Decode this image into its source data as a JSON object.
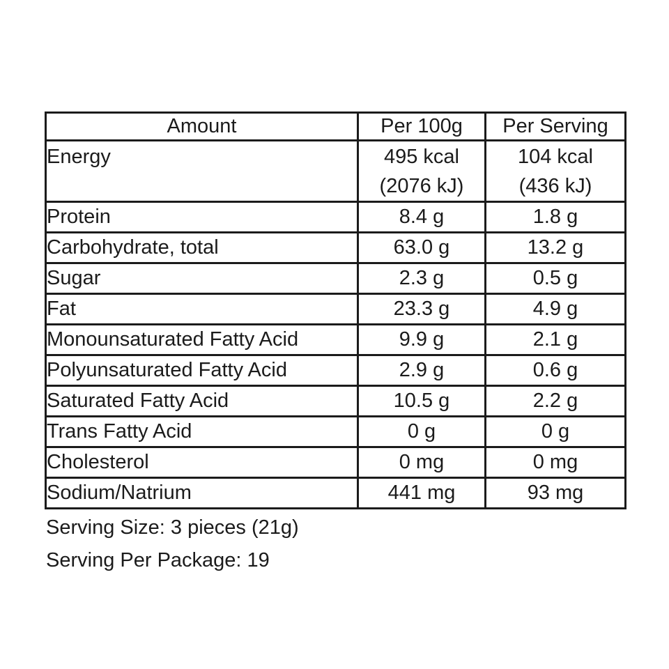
{
  "colors": {
    "background": "#ffffff",
    "text": "#1b1b1b",
    "border": "#1b1b1b"
  },
  "table": {
    "headers": {
      "amount": "Amount",
      "per_100g": "Per 100g",
      "per_serving": "Per Serving"
    },
    "rows": [
      {
        "label": "Energy",
        "per_100g": "495 kcal\n(2076 kJ)",
        "per_serving": "104 kcal\n(436 kJ)"
      },
      {
        "label": "Protein",
        "per_100g": "8.4 g",
        "per_serving": "1.8 g"
      },
      {
        "label": "Carbohydrate, total",
        "per_100g": "63.0 g",
        "per_serving": "13.2 g"
      },
      {
        "label": "Sugar",
        "per_100g": "2.3 g",
        "per_serving": "0.5 g"
      },
      {
        "label": "Fat",
        "per_100g": "23.3 g",
        "per_serving": "4.9 g"
      },
      {
        "label": "Monounsaturated Fatty Acid",
        "per_100g": "9.9 g",
        "per_serving": "2.1 g"
      },
      {
        "label": "Polyunsaturated Fatty Acid",
        "per_100g": "2.9 g",
        "per_serving": "0.6 g"
      },
      {
        "label": "Saturated Fatty Acid",
        "per_100g": "10.5 g",
        "per_serving": "2.2 g"
      },
      {
        "label": "Trans Fatty Acid",
        "per_100g": "0 g",
        "per_serving": "0 g"
      },
      {
        "label": "Cholesterol",
        "per_100g": "0 mg",
        "per_serving": "0 mg"
      },
      {
        "label": "Sodium/Natrium",
        "per_100g": "441 mg",
        "per_serving": "93 mg"
      }
    ]
  },
  "footnotes": {
    "serving_size": "Serving Size: 3 pieces (21g)",
    "serving_per_package": "Serving Per Package: 19"
  }
}
